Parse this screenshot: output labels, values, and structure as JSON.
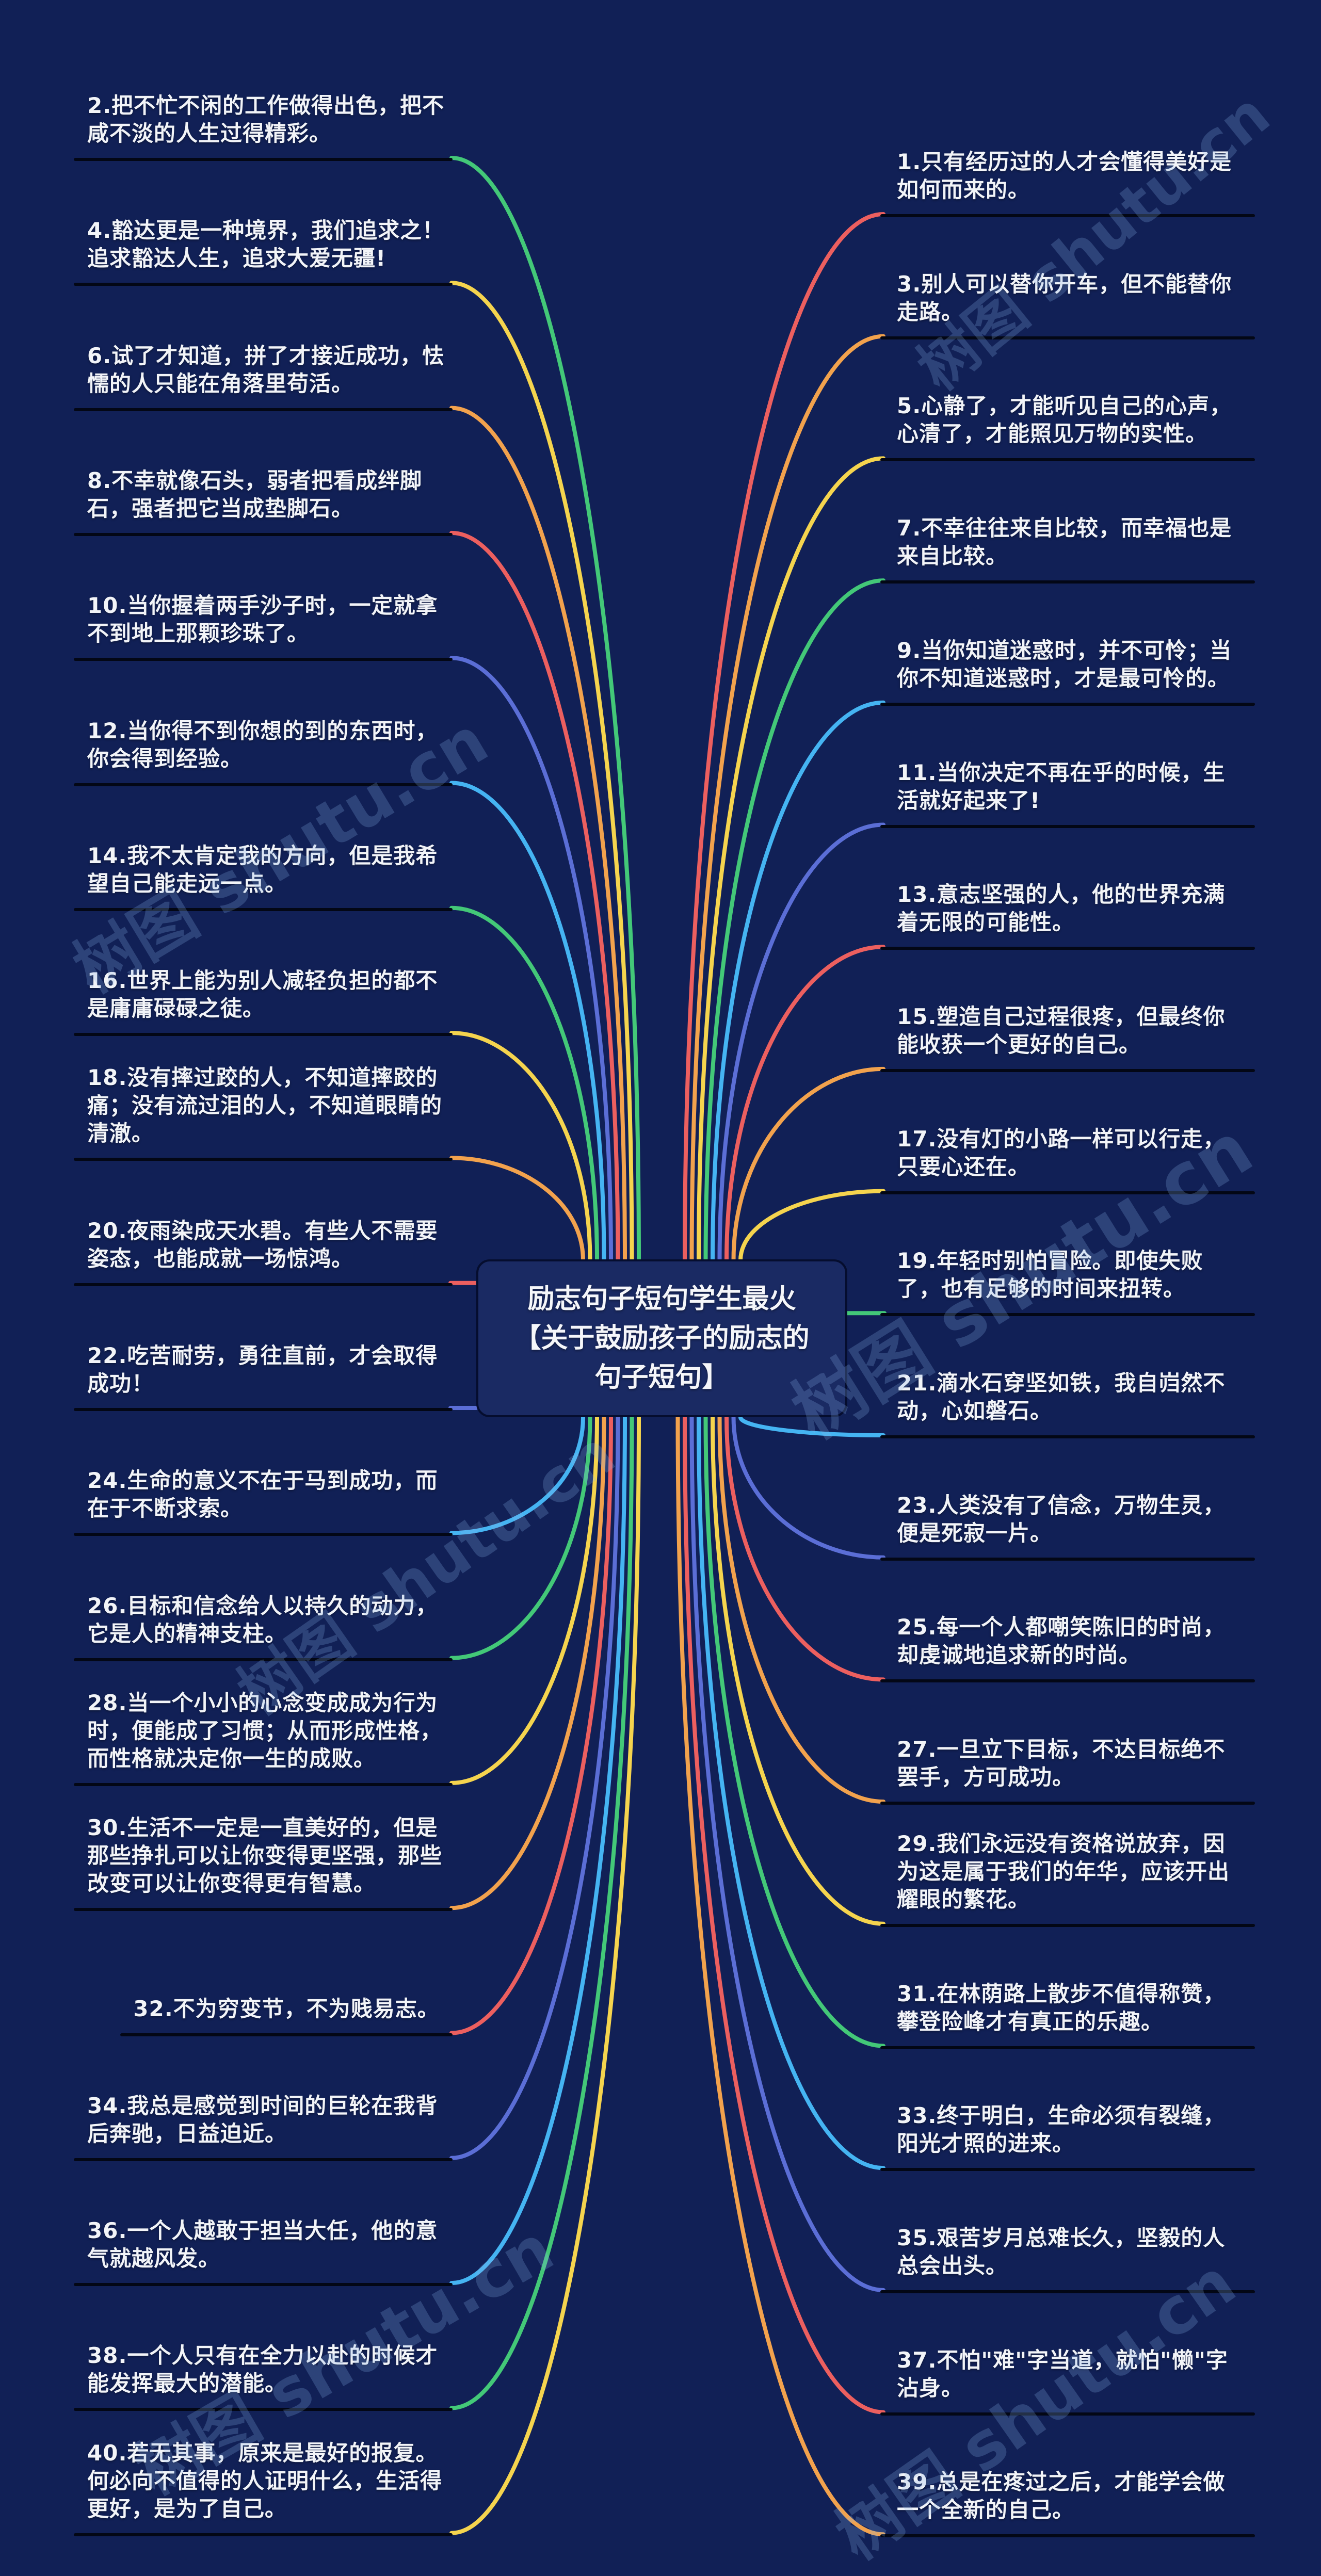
{
  "title": {
    "text": "励志句子短句学生最火【关于鼓励孩子的励志的句子短句】"
  },
  "watermark": {
    "text": "树图 shutu.cn"
  },
  "palette": {
    "red": "#ec5f5f",
    "orange": "#f2a24d",
    "yellow": "#f5d44e",
    "green": "#43c878",
    "cyan": "#45b4f2",
    "indigo": "#5b6ed6"
  },
  "colors": {
    "background": "#112056",
    "node_fill": "#1a2a63",
    "node_border": "#050d2e",
    "underline": "#030715",
    "text": "#f2f4f8"
  },
  "quotes": {
    "left": [
      {
        "text": "2.把不忙不闲的工作做得出色，把不咸不淡的人生过得精彩。",
        "color": "green"
      },
      {
        "text": "4.豁达更是一种境界，我们追求之！ 追求豁达人生，追求大爱无疆!",
        "color": "yellow"
      },
      {
        "text": "6.试了才知道，拼了才接近成功，怯懦的人只能在角落里苟活。",
        "color": "orange"
      },
      {
        "text": "8.不幸就像石头，弱者把看成绊脚石，强者把它当成垫脚石。",
        "color": "red"
      },
      {
        "text": "10.当你握着两手沙子时，一定就拿不到地上那颗珍珠了。",
        "color": "indigo"
      },
      {
        "text": "12.当你得不到你想的到的东西时，你会得到经验。",
        "color": "cyan"
      },
      {
        "text": "14.我不太肯定我的方向，但是我希望自己能走远一点。",
        "color": "green"
      },
      {
        "text": "16.世界上能为别人减轻负担的都不是庸庸碌碌之徒。",
        "color": "yellow"
      },
      {
        "text": "18.没有摔过跤的人，不知道摔跤的痛；没有流过泪的人，不知道眼睛的清澈。",
        "color": "orange"
      },
      {
        "text": "20.夜雨染成天水碧。有些人不需要姿态，也能成就一场惊鸿。",
        "color": "red"
      },
      {
        "text": "22.吃苦耐劳，勇往直前，才会取得成功！",
        "color": "indigo"
      },
      {
        "text": "24.生命的意义不在于马到成功，而在于不断求索。",
        "color": "cyan"
      },
      {
        "text": "26.目标和信念给人以持久的动力，它是人的精神支柱。",
        "color": "green"
      },
      {
        "text": "28.当一个小小的心念变成成为行为时，便能成了习惯；从而形成性格，而性格就决定你一生的成败。",
        "color": "yellow"
      },
      {
        "text": "30.生活不一定是一直美好的，但是那些挣扎可以让你变得更坚强，那些改变可以让你变得更有智慧。",
        "color": "orange"
      },
      {
        "text": "32.不为穷变节，不为贱易志。",
        "color": "red"
      },
      {
        "text": "34.我总是感觉到时间的巨轮在我背后奔驰，日益迫近。",
        "color": "indigo"
      },
      {
        "text": "36.一个人越敢于担当大任，他的意气就越风发。",
        "color": "cyan"
      },
      {
        "text": "38.一个人只有在全力以赴的时候才能发挥最大的潜能。",
        "color": "green"
      },
      {
        "text": "40.若无其事，原来是最好的报复。何必向不值得的人证明什么，生活得更好，是为了自己。",
        "color": "yellow"
      }
    ],
    "right": [
      {
        "text": "1.只有经历过的人才会懂得美好是如何而来的。",
        "color": "red"
      },
      {
        "text": "3.别人可以替你开车，但不能替你走路。",
        "color": "orange"
      },
      {
        "text": "5.心静了，才能听见自己的心声，心清了，才能照见万物的实性。",
        "color": "yellow"
      },
      {
        "text": "7.不幸往往来自比较，而幸福也是来自比较。",
        "color": "green"
      },
      {
        "text": "9.当你知道迷惑时，并不可怜；当你不知道迷惑时，才是最可怜的。",
        "color": "cyan"
      },
      {
        "text": "11.当你决定不再在乎的时候，生活就好起来了!",
        "color": "indigo"
      },
      {
        "text": "13.意志坚强的人，他的世界充满着无限的可能性。",
        "color": "red"
      },
      {
        "text": "15.塑造自己过程很疼，但最终你能收获一个更好的自己。",
        "color": "orange"
      },
      {
        "text": "17.没有灯的小路一样可以行走，只要心还在。",
        "color": "yellow"
      },
      {
        "text": "19.年轻时别怕冒险。即使失败了，也有足够的时间来扭转。",
        "color": "green"
      },
      {
        "text": "21.滴水石穿坚如铁，我自岿然不动，心如磐石。",
        "color": "cyan"
      },
      {
        "text": "23.人类没有了信念，万物生灵，便是死寂一片。",
        "color": "indigo"
      },
      {
        "text": "25.每一个人都嘲笑陈旧的时尚，却虔诚地追求新的时尚。",
        "color": "red"
      },
      {
        "text": "27.一旦立下目标，不达目标绝不罢手，方可成功。",
        "color": "orange"
      },
      {
        "text": "29.我们永远没有资格说放弃，因为这是属于我们的年华，应该开出耀眼的繁花。",
        "color": "yellow"
      },
      {
        "text": "31.在林荫路上散步不值得称赞，攀登险峰才有真正的乐趣。",
        "color": "green"
      },
      {
        "text": "33.终于明白，生命必须有裂缝，阳光才照的进来。",
        "color": "cyan"
      },
      {
        "text": "35.艰苦岁月总难长久，坚毅的人总会出头。",
        "color": "indigo"
      },
      {
        "text": "37.不怕\"难\"字当道，就怕\"懒\"字沾身。",
        "color": "red"
      },
      {
        "text": "39.总是在疼过之后，才能学会做一个全新的自己。",
        "color": "orange"
      }
    ]
  }
}
